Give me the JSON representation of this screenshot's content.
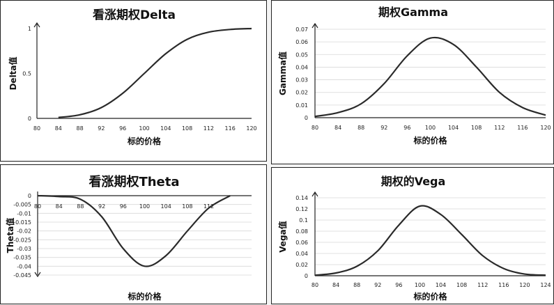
{
  "chart_data": [
    {
      "id": "delta",
      "type": "line",
      "title": "看涨期权Delta",
      "xlabel": "标的价格",
      "ylabel": "Delta值",
      "x_ticks": [
        80,
        84,
        88,
        92,
        96,
        100,
        104,
        108,
        112,
        116,
        120
      ],
      "xlim": [
        80,
        120
      ],
      "y_ticks": [
        0,
        0.5,
        1
      ],
      "y_tick_labels": [
        "0",
        "0.5",
        "1"
      ],
      "ylim": [
        0,
        1
      ],
      "grid": false,
      "series": [
        {
          "name": "Delta",
          "x": [
            84,
            88,
            92,
            96,
            100,
            104,
            108,
            112,
            116,
            120
          ],
          "y": [
            0.01,
            0.04,
            0.12,
            0.28,
            0.5,
            0.72,
            0.88,
            0.96,
            0.99,
            1.0
          ]
        }
      ]
    },
    {
      "id": "gamma",
      "type": "line",
      "title": "期权Gamma",
      "xlabel": "标的价格",
      "ylabel": "Gamma值",
      "x_ticks": [
        80,
        84,
        88,
        92,
        96,
        100,
        104,
        108,
        112,
        116,
        120
      ],
      "xlim": [
        80,
        120
      ],
      "y_ticks": [
        0,
        0.01,
        0.02,
        0.03,
        0.04,
        0.05,
        0.06,
        0.07
      ],
      "y_tick_labels": [
        "0",
        "0.01",
        "0.02",
        "0.03",
        "0.04",
        "0.05",
        "0.06",
        "0.07"
      ],
      "ylim": [
        0,
        0.07
      ],
      "grid": true,
      "series": [
        {
          "name": "Gamma",
          "x": [
            80,
            84,
            88,
            92,
            96,
            100,
            104,
            108,
            112,
            116,
            120
          ],
          "y": [
            0.001,
            0.004,
            0.011,
            0.027,
            0.049,
            0.063,
            0.058,
            0.04,
            0.02,
            0.008,
            0.002
          ]
        }
      ]
    },
    {
      "id": "theta",
      "type": "line",
      "title": "看涨期权Theta",
      "xlabel": "标的价格",
      "ylabel": "Theta值",
      "x_ticks": [
        80,
        84,
        88,
        92,
        96,
        100,
        104,
        108,
        112
      ],
      "xlim": [
        80,
        120
      ],
      "y_ticks": [
        0,
        -0.005,
        -0.01,
        -0.015,
        -0.02,
        -0.025,
        -0.03,
        -0.035,
        -0.04,
        -0.045
      ],
      "y_tick_labels": [
        "0",
        "-0.005",
        "-0.01",
        "-0.015",
        "-0.02",
        "-0.025",
        "-0.03",
        "-0.035",
        "-0.04",
        "-0.045"
      ],
      "ylim": [
        -0.045,
        0
      ],
      "grid": true,
      "series": [
        {
          "name": "Theta",
          "x": [
            80,
            84,
            88,
            92,
            96,
            100,
            104,
            108,
            112,
            116
          ],
          "y": [
            0,
            -0.0005,
            -0.002,
            -0.012,
            -0.03,
            -0.04,
            -0.034,
            -0.02,
            -0.007,
            0
          ]
        }
      ]
    },
    {
      "id": "vega",
      "type": "line",
      "title": "期权的Vega",
      "xlabel": "标的价格",
      "ylabel": "Vega值",
      "x_ticks": [
        80,
        84,
        88,
        92,
        96,
        100,
        104,
        108,
        112,
        116,
        120,
        124
      ],
      "xlim": [
        80,
        124
      ],
      "y_ticks": [
        0,
        0.02,
        0.04,
        0.06,
        0.08,
        0.1,
        0.12,
        0.14
      ],
      "y_tick_labels": [
        "0",
        "0.02",
        "0.04",
        "0.06",
        "0.08",
        "0.1",
        "0.12",
        "0.14"
      ],
      "ylim": [
        0,
        0.14
      ],
      "grid": true,
      "series": [
        {
          "name": "Vega",
          "x": [
            80,
            84,
            88,
            92,
            96,
            100,
            104,
            108,
            112,
            116,
            120,
            124
          ],
          "y": [
            0.001,
            0.005,
            0.017,
            0.045,
            0.091,
            0.125,
            0.11,
            0.074,
            0.036,
            0.013,
            0.003,
            0.001
          ]
        }
      ]
    }
  ],
  "colors": {
    "curve": "#2a2a2a",
    "axis": "#222222",
    "grid": "#d8d8d8"
  }
}
